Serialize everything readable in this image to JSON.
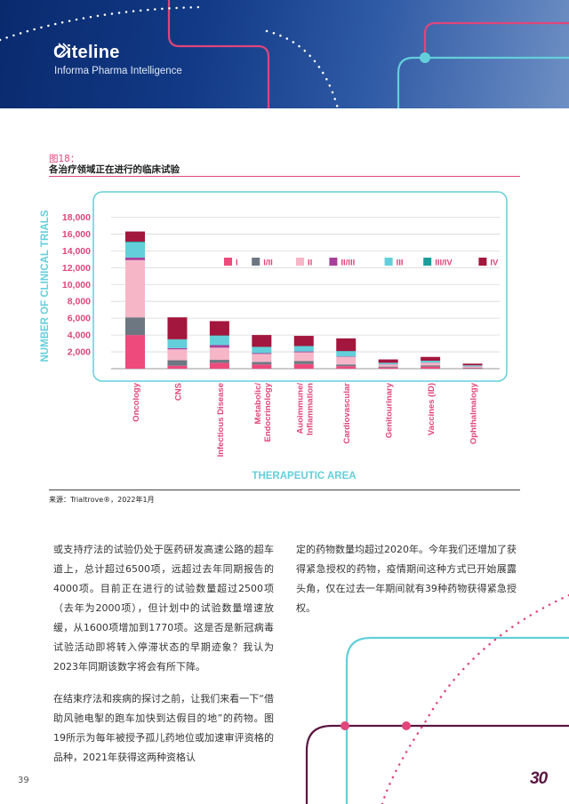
{
  "header": {
    "brand": "Citeline",
    "tagline": "Informa Pharma Intelligence"
  },
  "figure": {
    "label": "图18：",
    "title": "各治疗领域正在进行的临床试验",
    "source": "来源：Trialtrove®，2022年1月"
  },
  "colors": {
    "I": "#ee4a7c",
    "I/II": "#6d7782",
    "II": "#f6b6c8",
    "II/III": "#a6409b",
    "III": "#63cfda",
    "III/IV": "#1a9e9b",
    "IV": "#a3163d"
  },
  "chart_data": {
    "type": "bar",
    "stacked": true,
    "ylabel": "NUMBER OF CLINICAL TRIALS",
    "xlabel": "THERAPEUTIC AREA",
    "ylim": [
      0,
      19000
    ],
    "yticks": [
      "2,000",
      "4,000",
      "6,000",
      "8,000",
      "10,000",
      "12,000",
      "14,000",
      "16,000",
      "18,000"
    ],
    "ytick_values": [
      2000,
      4000,
      6000,
      8000,
      10000,
      12000,
      14000,
      16000,
      18000
    ],
    "legend_position": "top-right",
    "categories": [
      "Oncology",
      "CNS",
      "Infectious Disease",
      "Metabolic/ Endocrinology",
      "Auoimmune/ Inflammation",
      "Cardiovascular",
      "Genitourinary",
      "Vaccines (ID)",
      "Ophthalmalogy"
    ],
    "series": [
      {
        "name": "I",
        "values": [
          4000,
          350,
          700,
          500,
          550,
          300,
          150,
          250,
          50
        ]
      },
      {
        "name": "I/II",
        "values": [
          2100,
          650,
          350,
          300,
          350,
          200,
          100,
          150,
          50
        ]
      },
      {
        "name": "II",
        "values": [
          6800,
          1300,
          1450,
          950,
          1050,
          900,
          250,
          300,
          150
        ]
      },
      {
        "name": "II/III",
        "values": [
          300,
          150,
          300,
          100,
          100,
          60,
          30,
          30,
          20
        ]
      },
      {
        "name": "III",
        "values": [
          1800,
          1000,
          1100,
          700,
          600,
          600,
          150,
          200,
          120
        ]
      },
      {
        "name": "III/IV",
        "values": [
          100,
          50,
          50,
          50,
          50,
          40,
          20,
          20,
          10
        ]
      },
      {
        "name": "IV",
        "values": [
          1200,
          2600,
          1700,
          1400,
          1200,
          1500,
          400,
          450,
          200
        ]
      }
    ]
  },
  "body": {
    "left_p1": "或支持疗法的试验仍处于医药研发高速公路的超车道上，总计超过6500项，远超过去年同期报告的4000项。目前正在进行的试验数量超过2500项（去年为2000项），但计划中的试验数量增速放缓，从1600项增加到1770项。这是否是新冠病毒试验活动即将转入停滞状态的早期迹象？我认为2023年同期该数字将会有所下降。",
    "left_p2": "在结束疗法和疾病的探讨之前，让我们来看一下“借助风驰电掣的跑车加快到达假目的地”的药物。图19所示为每年被授予孤儿药地位或加速审评资格的品种，2021年获得这两种资格认",
    "right_p1": "定的药物数量均超过2020年。今年我们还增加了获得紧急授权的药物，疫情期间这种方式已开始展露头角，仅在过去一年期间就有39种药物获得紧急授权。"
  },
  "footer": {
    "page_number": "39",
    "anniversary_logo": "30"
  }
}
